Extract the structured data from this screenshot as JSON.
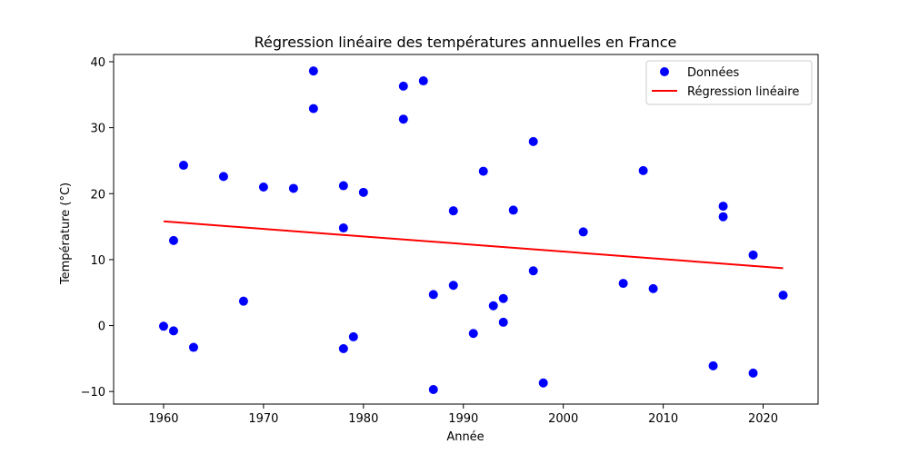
{
  "chart_data": {
    "type": "scatter",
    "title": "Régression linéaire des températures annuelles en France",
    "xlabel": "Année",
    "ylabel": "Température (°C)",
    "xlim": [
      1955,
      2025.5
    ],
    "ylim": [
      -11.9,
      41.1
    ],
    "xticks": [
      1960,
      1970,
      1980,
      1990,
      2000,
      2010,
      2020
    ],
    "yticks": [
      -10,
      0,
      10,
      20,
      30,
      40
    ],
    "grid": false,
    "legend_position": "top-right",
    "series": [
      {
        "name": "Données",
        "kind": "scatter",
        "color": "#0000ff",
        "points": [
          [
            1960,
            -0.1
          ],
          [
            1961,
            12.9
          ],
          [
            1961,
            -0.8
          ],
          [
            1962,
            24.3
          ],
          [
            1963,
            -3.3
          ],
          [
            1966,
            22.6
          ],
          [
            1968,
            3.7
          ],
          [
            1970,
            21.0
          ],
          [
            1973,
            20.8
          ],
          [
            1975,
            38.6
          ],
          [
            1975,
            32.9
          ],
          [
            1978,
            21.2
          ],
          [
            1978,
            14.8
          ],
          [
            1978,
            -3.5
          ],
          [
            1979,
            -1.7
          ],
          [
            1980,
            20.2
          ],
          [
            1984,
            36.3
          ],
          [
            1984,
            31.3
          ],
          [
            1986,
            37.1
          ],
          [
            1987,
            4.7
          ],
          [
            1987,
            -9.7
          ],
          [
            1989,
            17.4
          ],
          [
            1989,
            6.1
          ],
          [
            1991,
            -1.2
          ],
          [
            1992,
            23.4
          ],
          [
            1993,
            3.0
          ],
          [
            1994,
            4.1
          ],
          [
            1994,
            0.5
          ],
          [
            1995,
            17.5
          ],
          [
            1997,
            27.9
          ],
          [
            1997,
            8.3
          ],
          [
            1998,
            -8.7
          ],
          [
            2002,
            14.2
          ],
          [
            2006,
            6.4
          ],
          [
            2008,
            23.5
          ],
          [
            2009,
            5.6
          ],
          [
            2015,
            -6.1
          ],
          [
            2016,
            18.1
          ],
          [
            2016,
            16.5
          ],
          [
            2019,
            10.7
          ],
          [
            2019,
            -7.2
          ],
          [
            2022,
            4.6
          ]
        ]
      },
      {
        "name": "Régression linéaire",
        "kind": "line",
        "color": "#ff0000",
        "points": [
          [
            1960,
            15.8
          ],
          [
            2022,
            8.7
          ]
        ]
      }
    ]
  }
}
